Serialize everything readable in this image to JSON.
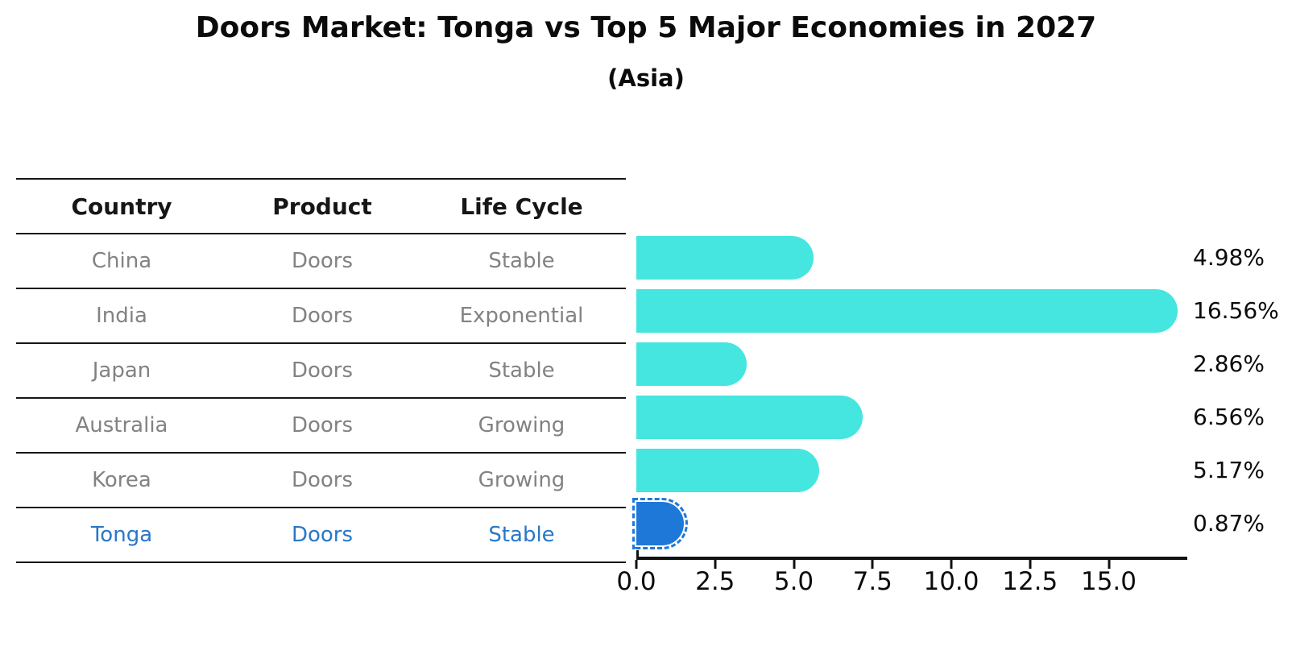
{
  "title": "Doors Market: Tonga vs Top 5 Major Economies in 2027",
  "subtitle": "(Asia)",
  "table": {
    "columns": [
      "Country",
      "Product",
      "Life Cycle"
    ],
    "rows": [
      {
        "country": "China",
        "product": "Doors",
        "life_cycle": "Stable",
        "highlighted": false
      },
      {
        "country": "India",
        "product": "Doors",
        "life_cycle": "Exponential",
        "highlighted": false
      },
      {
        "country": "Japan",
        "product": "Doors",
        "life_cycle": "Stable",
        "highlighted": false
      },
      {
        "country": "Australia",
        "product": "Doors",
        "life_cycle": "Growing",
        "highlighted": false
      },
      {
        "country": "Korea",
        "product": "Doors",
        "life_cycle": "Growing",
        "highlighted": false
      },
      {
        "country": "Tonga",
        "product": "Doors",
        "life_cycle": "Stable",
        "highlighted": true
      }
    ]
  },
  "chart_data": {
    "type": "bar",
    "orientation": "horizontal",
    "title": "Doors Market: Tonga vs Top 5 Major Economies in 2027",
    "subtitle": "(Asia)",
    "categories": [
      "China",
      "India",
      "Japan",
      "Australia",
      "Korea",
      "Tonga"
    ],
    "values": [
      4.98,
      16.56,
      2.86,
      6.56,
      5.17,
      0.87
    ],
    "value_labels": [
      "4.98%",
      "16.56%",
      "2.86%",
      "6.56%",
      "5.17%",
      "0.87%"
    ],
    "unit": "%",
    "xlabel": "",
    "ylabel": "",
    "xlim": [
      0,
      17.5
    ],
    "x_ticks": [
      0,
      2.5,
      5,
      7.5,
      10,
      12.5,
      15
    ],
    "x_tick_labels": [
      "0.0",
      "2.5",
      "5.0",
      "7.5",
      "10.0",
      "12.5",
      "15.0"
    ],
    "grid": false,
    "legend": null,
    "highlight_index": 5
  },
  "colors": {
    "background": "#ffffff",
    "bar_default": "#44e6df",
    "bar_highlight": "#1e78d8",
    "highlight_text": "#2878c8",
    "header_text": "#161616",
    "cell_text": "#828282",
    "axis": "#111111"
  }
}
